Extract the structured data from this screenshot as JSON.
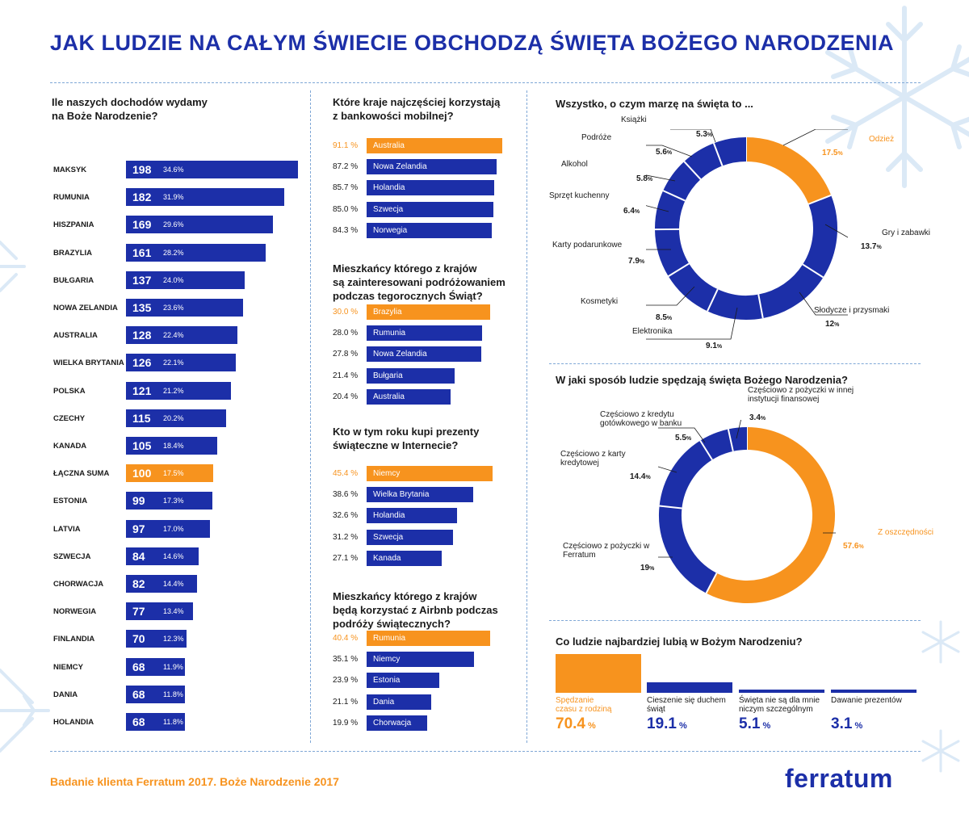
{
  "title": "JAK LUDZIE NA CAŁYM ŚWIECIE OBCHODZĄ ŚWIĘTA BOŻEGO NARODZENIA",
  "footer": "Badanie klienta Ferratum 2017. Boże Narodzenie 2017",
  "logo": "ferratum",
  "colors": {
    "blue": "#1c2fa8",
    "orange": "#f7931e",
    "dash": "#7fa7d6",
    "snow": "#dbe9f6"
  },
  "left_chart": {
    "title_line1": "Ile naszych dochodów wydamy",
    "title_line2": "na Boże Narodzenie?"
  },
  "mobile_banking": {
    "title_line1": "Które kraje najczęściej korzystają",
    "title_line2": "z bankowości mobilnej?"
  },
  "travel": {
    "title_line1": "Mieszkańcy którego z krajów",
    "title_line2": "są zainteresowani podróżowaniem",
    "title_line3": "podczas tegorocznych Świąt?"
  },
  "online_gifts": {
    "title_line1": "Kto w tym roku kupi prezenty",
    "title_line2": "świąteczne w Internecie?"
  },
  "airbnb": {
    "title_line1": "Mieszkańcy którego z krajów",
    "title_line2": "będą korzystać z Airbnb podczas",
    "title_line3": "podróży świątecznych?"
  },
  "wishes": {
    "title": "Wszystko, o czym marzę na święta to ..."
  },
  "spending": {
    "title": "W jaki sposób ludzie spędzają święta Bożego Narodzenia?"
  },
  "likes": {
    "title": "Co ludzie najbardziej lubią w Bożym Narodzeniu?"
  },
  "chart_data": [
    {
      "type": "bar",
      "title": "Ile naszych dochodów wydamy na Boże Narodzenie?",
      "categories": [
        "MAKSYK",
        "RUMUNIA",
        "HISZPANIA",
        "BRAZYLIA",
        "BUŁGARIA",
        "NOWA ZELANDIA",
        "AUSTRALIA",
        "WIELKA BRYTANIA",
        "POLSKA",
        "CZECHY",
        "KANADA",
        "ŁĄCZNA SUMA",
        "ESTONIA",
        "LATVIA",
        "SZWECJA",
        "CHORWACJA",
        "NORWEGIA",
        "FINLANDIA",
        "NIEMCY",
        "DANIA",
        "HOLANDIA"
      ],
      "values": [
        198,
        182,
        169,
        161,
        137,
        135,
        128,
        126,
        121,
        115,
        105,
        100,
        99,
        97,
        84,
        82,
        77,
        70,
        68,
        68,
        68
      ],
      "labels": [
        "34.6%",
        "31.9%",
        "29.6%",
        "28.2%",
        "24.0%",
        "23.6%",
        "22.4%",
        "22.1%",
        "21.2%",
        "20.2%",
        "18.4%",
        "17.5%",
        "17.3%",
        "17.0%",
        "14.6%",
        "14.4%",
        "13.4%",
        "12.3%",
        "11.9%",
        "11.8%",
        "11.8%"
      ],
      "highlight": 11
    },
    {
      "type": "bar",
      "title": "Które kraje najczęściej korzystają z bankowości mobilnej?",
      "categories": [
        "Australia",
        "Nowa Zelandia",
        "Holandia",
        "Szwecja",
        "Norwegia"
      ],
      "values": [
        91.1,
        87.2,
        85.7,
        85.0,
        84.3
      ],
      "labels": [
        "91.1 %",
        "87.2 %",
        "85.7 %",
        "85.0 %",
        "84.3 %"
      ],
      "highlight": 0
    },
    {
      "type": "bar",
      "title": "Mieszkańcy którego z krajów są zainteresowani podróżowaniem podczas tegorocznych Świąt?",
      "categories": [
        "Brazylia",
        "Rumunia",
        "Nowa Zelandia",
        "Bułgaria",
        "Australia"
      ],
      "values": [
        30.0,
        28.0,
        27.8,
        21.4,
        20.4
      ],
      "labels": [
        "30.0 %",
        "28.0 %",
        "27.8 %",
        "21.4 %",
        "20.4 %"
      ],
      "highlight": 0
    },
    {
      "type": "bar",
      "title": "Kto w tym roku kupi prezenty świąteczne w Internecie?",
      "categories": [
        "Niemcy",
        "Wielka Brytania",
        "Holandia",
        "Szwecja",
        "Kanada"
      ],
      "values": [
        45.4,
        38.6,
        32.6,
        31.2,
        27.1
      ],
      "labels": [
        "45.4 %",
        "38.6 %",
        "32.6 %",
        "31.2 %",
        "27.1 %"
      ],
      "highlight": 0
    },
    {
      "type": "bar",
      "title": "Mieszkańcy którego z krajów będą korzystać z Airbnb podczas podróży świątecznych?",
      "categories": [
        "Rumunia",
        "Niemcy",
        "Estonia",
        "Dania",
        "Chorwacja"
      ],
      "values": [
        40.4,
        35.1,
        23.9,
        21.1,
        19.9
      ],
      "labels": [
        "40.4 %",
        "35.1 %",
        "23.9 %",
        "21.1 %",
        "19.9 %"
      ],
      "highlight": 0
    },
    {
      "type": "pie",
      "title": "Wszystko, o czym marzę na święta to ...",
      "categories": [
        "Odzież",
        "Gry i zabawki",
        "Słodycze i przysmaki",
        "Elektronika",
        "Kosmetyki",
        "Karty podarunkowe",
        "Sprzęt kuchenny",
        "Alkohol",
        "Podróże",
        "Książki"
      ],
      "values": [
        17.5,
        13.7,
        12,
        9.1,
        8.5,
        7.9,
        6.4,
        5.8,
        5.6,
        5.3
      ],
      "labels": [
        "17.5",
        "13.7",
        "12",
        "9.1",
        "8.5",
        "7.9",
        "6.4",
        "5.8",
        "5.6",
        "5.3"
      ],
      "unit": "%",
      "highlight": 0
    },
    {
      "type": "pie",
      "title": "W jaki sposób ludzie spędzają święta Bożego Narodzenia?",
      "categories": [
        "Z oszczędności",
        "Częściowo z pożyczki w Ferratum",
        "Częściowo z karty kredytowej",
        "Częściowo z kredytu gotówkowego w banku",
        "Częściowo z pożyczki w innej instytucji finansowej"
      ],
      "values": [
        57.6,
        19,
        14.4,
        5.5,
        3.4
      ],
      "labels": [
        "57.6",
        "19",
        "14.4",
        "5.5",
        "3.4"
      ],
      "unit": "%",
      "highlight": 0
    },
    {
      "type": "bar",
      "title": "Co ludzie najbardziej lubią w Bożym Narodzeniu?",
      "categories": [
        "Spędzanie czasu z rodziną",
        "Cieszenie się duchem świąt",
        "Święta nie są dla mnie niczym szczególnym",
        "Dawanie prezentów"
      ],
      "values": [
        70.4,
        19.1,
        5.1,
        3.1
      ],
      "labels": [
        "70.4",
        "19.1",
        "5.1",
        "3.1"
      ],
      "unit": "%",
      "highlight": 0
    }
  ]
}
